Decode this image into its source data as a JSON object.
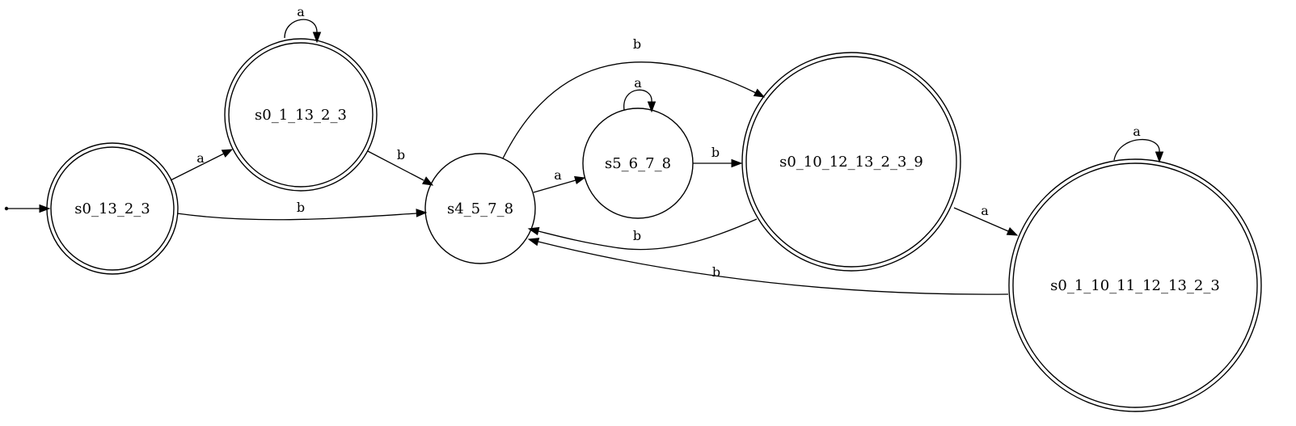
{
  "nodes": {
    "s0_13_2_3": {
      "label": "s0_13_2_3",
      "accepting": true
    },
    "s0_1_13_2_3": {
      "label": "s0_1_13_2_3",
      "accepting": true
    },
    "s4_5_7_8": {
      "label": "s4_5_7_8",
      "accepting": false
    },
    "s5_6_7_8": {
      "label": "s5_6_7_8",
      "accepting": false
    },
    "s0_10_12_13_2_3_9": {
      "label": "s0_10_12_13_2_3_9",
      "accepting": true
    },
    "s0_1_10_11_12_13_2_3": {
      "label": "s0_1_10_11_12_13_2_3",
      "accepting": true
    }
  },
  "start_state": "s0_13_2_3",
  "edges": [
    {
      "from": "s0_13_2_3",
      "to": "s0_1_13_2_3",
      "label": "a"
    },
    {
      "from": "s0_13_2_3",
      "to": "s4_5_7_8",
      "label": "b"
    },
    {
      "from": "s0_1_13_2_3",
      "to": "s0_1_13_2_3",
      "label": "a"
    },
    {
      "from": "s0_1_13_2_3",
      "to": "s4_5_7_8",
      "label": "b"
    },
    {
      "from": "s4_5_7_8",
      "to": "s0_10_12_13_2_3_9",
      "label": "b"
    },
    {
      "from": "s4_5_7_8",
      "to": "s5_6_7_8",
      "label": "a"
    },
    {
      "from": "s5_6_7_8",
      "to": "s5_6_7_8",
      "label": "a"
    },
    {
      "from": "s5_6_7_8",
      "to": "s0_10_12_13_2_3_9",
      "label": "b"
    },
    {
      "from": "s0_10_12_13_2_3_9",
      "to": "s4_5_7_8",
      "label": "b"
    },
    {
      "from": "s0_10_12_13_2_3_9",
      "to": "s0_1_10_11_12_13_2_3",
      "label": "a"
    },
    {
      "from": "s0_1_10_11_12_13_2_3",
      "to": "s0_1_10_11_12_13_2_3",
      "label": "a"
    },
    {
      "from": "s0_1_10_11_12_13_2_3",
      "to": "s4_5_7_8",
      "label": "b"
    }
  ]
}
